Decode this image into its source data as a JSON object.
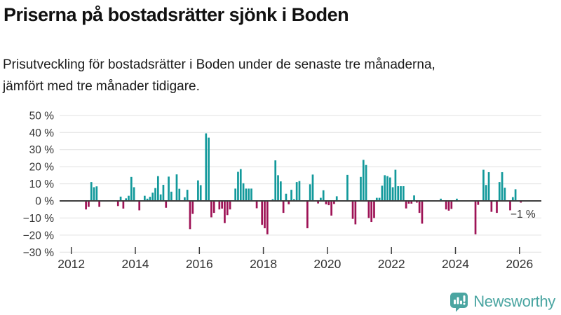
{
  "header": {
    "title": "Priserna på bostadsrätter sjönk i Boden",
    "subtitle_line1": "Prisutveckling för bostadsrätter i Boden under de senaste tre månaderna,",
    "subtitle_line2": "jämfört med tre månader tidigare."
  },
  "chart_data": {
    "type": "bar",
    "title": "Priserna på bostadsrätter sjönk i Boden",
    "xlabel": "",
    "ylabel": "",
    "unit": "%",
    "ylim": [
      -30,
      50
    ],
    "grid": true,
    "frequency": "monthly",
    "start_month": "2012-06",
    "end_month": "2026-01",
    "values": [
      -5,
      -3.5,
      11,
      8,
      8.5,
      -3.5,
      0,
      0,
      0,
      0,
      0,
      0,
      -3,
      2.5,
      -4.5,
      1.5,
      3,
      14,
      8,
      0,
      -5.5,
      0,
      3,
      1.3,
      2.4,
      4.8,
      7.5,
      14.5,
      3.8,
      9.4,
      -4,
      14.2,
      5.4,
      0,
      15.5,
      7.1,
      0,
      2.1,
      6.5,
      -16.5,
      -7.6,
      0,
      12,
      9.2,
      0,
      39.5,
      37,
      -9.6,
      -7,
      0,
      -5,
      -4.5,
      -13,
      -8.3,
      -5,
      0,
      7.2,
      17,
      18.6,
      10.3,
      7.2,
      7.2,
      7.2,
      0,
      -4.3,
      0,
      -14,
      -16,
      -19.5,
      0,
      1,
      23.7,
      15,
      11.4,
      -7,
      4.2,
      -2,
      6.5,
      1,
      11,
      11.6,
      0,
      0,
      -16,
      9.7,
      15.4,
      0,
      -1.5,
      1.8,
      6.2,
      -2,
      -2.5,
      -8.6,
      -1.8,
      2.7,
      0,
      0,
      0,
      15.2,
      0,
      -10.5,
      -13.7,
      0,
      14,
      24,
      21,
      -10,
      -12.3,
      -10,
      1.8,
      1.8,
      8.9,
      15,
      14.5,
      13.7,
      8,
      18.2,
      8.6,
      8.6,
      8.6,
      -4.4,
      -1.6,
      -1.6,
      3.2,
      -1,
      -7,
      -13.3,
      0,
      0,
      0,
      0,
      0,
      0,
      1.3,
      0,
      -5,
      -5.7,
      -4.7,
      0,
      1.3,
      0,
      0,
      0,
      0,
      0,
      0,
      -19.5,
      -2.3,
      0,
      18.2,
      9.3,
      16.8,
      -6.4,
      0,
      -7,
      11,
      16.8,
      7.7,
      0,
      -5.5,
      2.2,
      6.8,
      0,
      -1
    ],
    "y_ticks": [
      {
        "value": 50,
        "label": "50 %"
      },
      {
        "value": 40,
        "label": "40 %"
      },
      {
        "value": 30,
        "label": "30 %"
      },
      {
        "value": 20,
        "label": "20 %"
      },
      {
        "value": 10,
        "label": "10 %"
      },
      {
        "value": 0,
        "label": "0 %"
      },
      {
        "value": -10,
        "label": "−10 %"
      },
      {
        "value": -20,
        "label": "−20 %"
      },
      {
        "value": -30,
        "label": "−30 %"
      }
    ],
    "x_ticks": [
      {
        "year": 2012,
        "label": "2012"
      },
      {
        "year": 2014,
        "label": "2014"
      },
      {
        "year": 2016,
        "label": "2016"
      },
      {
        "year": 2018,
        "label": "2018"
      },
      {
        "year": 2020,
        "label": "2020"
      },
      {
        "year": 2022,
        "label": "2022"
      },
      {
        "year": 2024,
        "label": "2024"
      },
      {
        "year": 2026,
        "label": "2026"
      }
    ],
    "annotation": {
      "text": "−1 %",
      "refers_to": "last_bar"
    },
    "positive_color": "#12999B",
    "negative_color": "#9E1356",
    "axis_color": "#3d3d3d",
    "grid_color": "#e0e0e0",
    "label_color": "#333333",
    "legend_position": "none"
  },
  "footer": {
    "brand": "Newsworthy",
    "logo_color": "#4AA5A1"
  }
}
